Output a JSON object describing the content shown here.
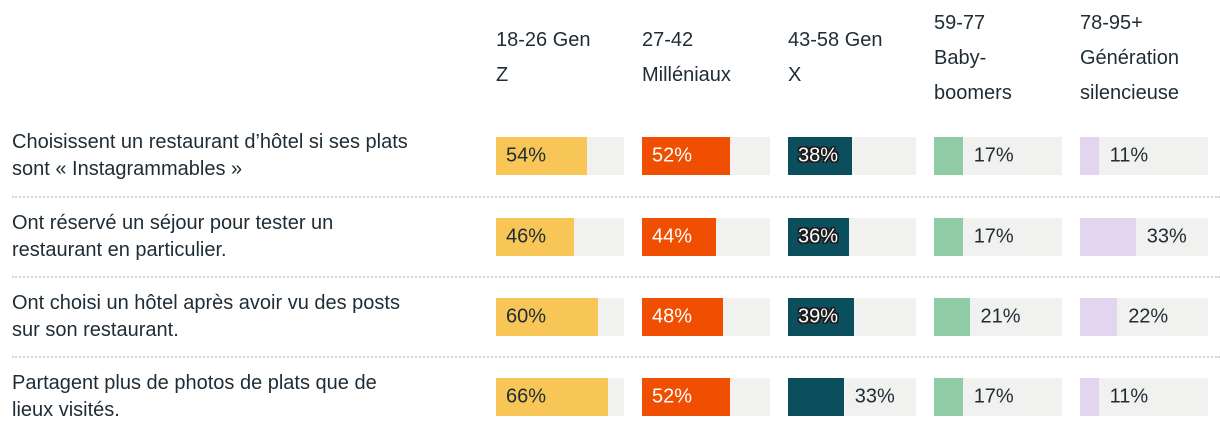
{
  "chart_data": {
    "type": "bar",
    "orientation": "horizontal",
    "value_suffix": "%",
    "track_color": "#f1f1ef",
    "separator_color": "#d3d3d1",
    "text_color": "#1e2c36",
    "scale_max_percent": 75.7,
    "columns": [
      {
        "label": "18-26 Gen\nZ",
        "color": "#f8c557",
        "label_color_inside": "#1e2c36",
        "label_outline": false
      },
      {
        "label": "27-42\nMilléniaux",
        "color": "#f04e00",
        "label_color_inside": "#ffffff",
        "label_outline": false
      },
      {
        "label": "43-58 Gen\nX",
        "color": "#0b4e5e",
        "label_color_inside": "#ffffff",
        "label_outline": true
      },
      {
        "label": "59-77\nBaby-\nboomers",
        "color": "#8fcca6",
        "label_color_inside": "#1e2c36",
        "label_outline": false
      },
      {
        "label": "78-95+\nGénération\nsilencieuse",
        "color": "#e3d5ef",
        "label_color_inside": "#1e2c36",
        "label_outline": false
      }
    ],
    "rows": [
      {
        "label": "Choisissent un restaurant d’hôtel si ses plats\nsont « Instagrammables »",
        "values": [
          54,
          52,
          38,
          17,
          11
        ]
      },
      {
        "label": "Ont réservé un séjour pour tester un\nrestaurant en particulier.",
        "values": [
          46,
          44,
          36,
          17,
          33
        ]
      },
      {
        "label": "Ont choisi un hôtel après avoir vu des posts\nsur son restaurant.",
        "values": [
          60,
          48,
          39,
          21,
          22
        ]
      },
      {
        "label": "Partagent plus de photos de plats que de\nlieux visités.",
        "values": [
          66,
          52,
          33,
          17,
          11
        ]
      }
    ]
  }
}
